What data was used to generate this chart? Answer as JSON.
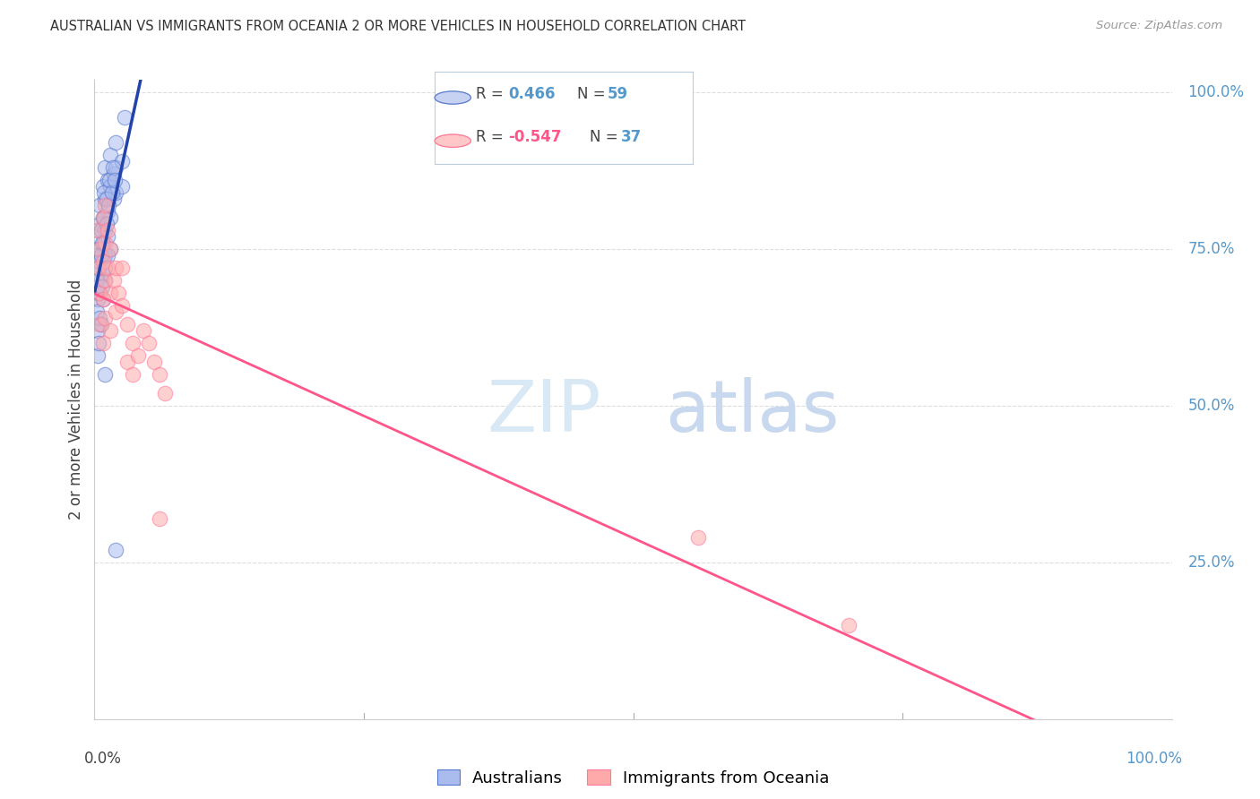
{
  "title": "AUSTRALIAN VS IMMIGRANTS FROM OCEANIA 2 OR MORE VEHICLES IN HOUSEHOLD CORRELATION CHART",
  "source": "Source: ZipAtlas.com",
  "ylabel": "2 or more Vehicles in Household",
  "legend_blue_R": "0.466",
  "legend_blue_N": "59",
  "legend_pink_R": "-0.547",
  "legend_pink_N": "37",
  "watermark_top": "ZIP",
  "watermark_bot": "atlas",
  "blue_dot_face": "#AABBEE",
  "blue_dot_edge": "#5577CC",
  "pink_dot_face": "#FFAAAA",
  "pink_dot_edge": "#FF7799",
  "blue_line_color": "#2244AA",
  "pink_line_color": "#FF5588",
  "right_axis_color": "#5599CC",
  "grid_color": "#DDDDDD",
  "bg_color": "#FFFFFF",
  "watermark_color": "#D8E8F5",
  "legend_box_edge": "#BBCCDD",
  "blue_r_color": "#5599CC",
  "pink_r_color": "#FF5588",
  "n_color": "#5599CC",
  "note_color": "#888888"
}
